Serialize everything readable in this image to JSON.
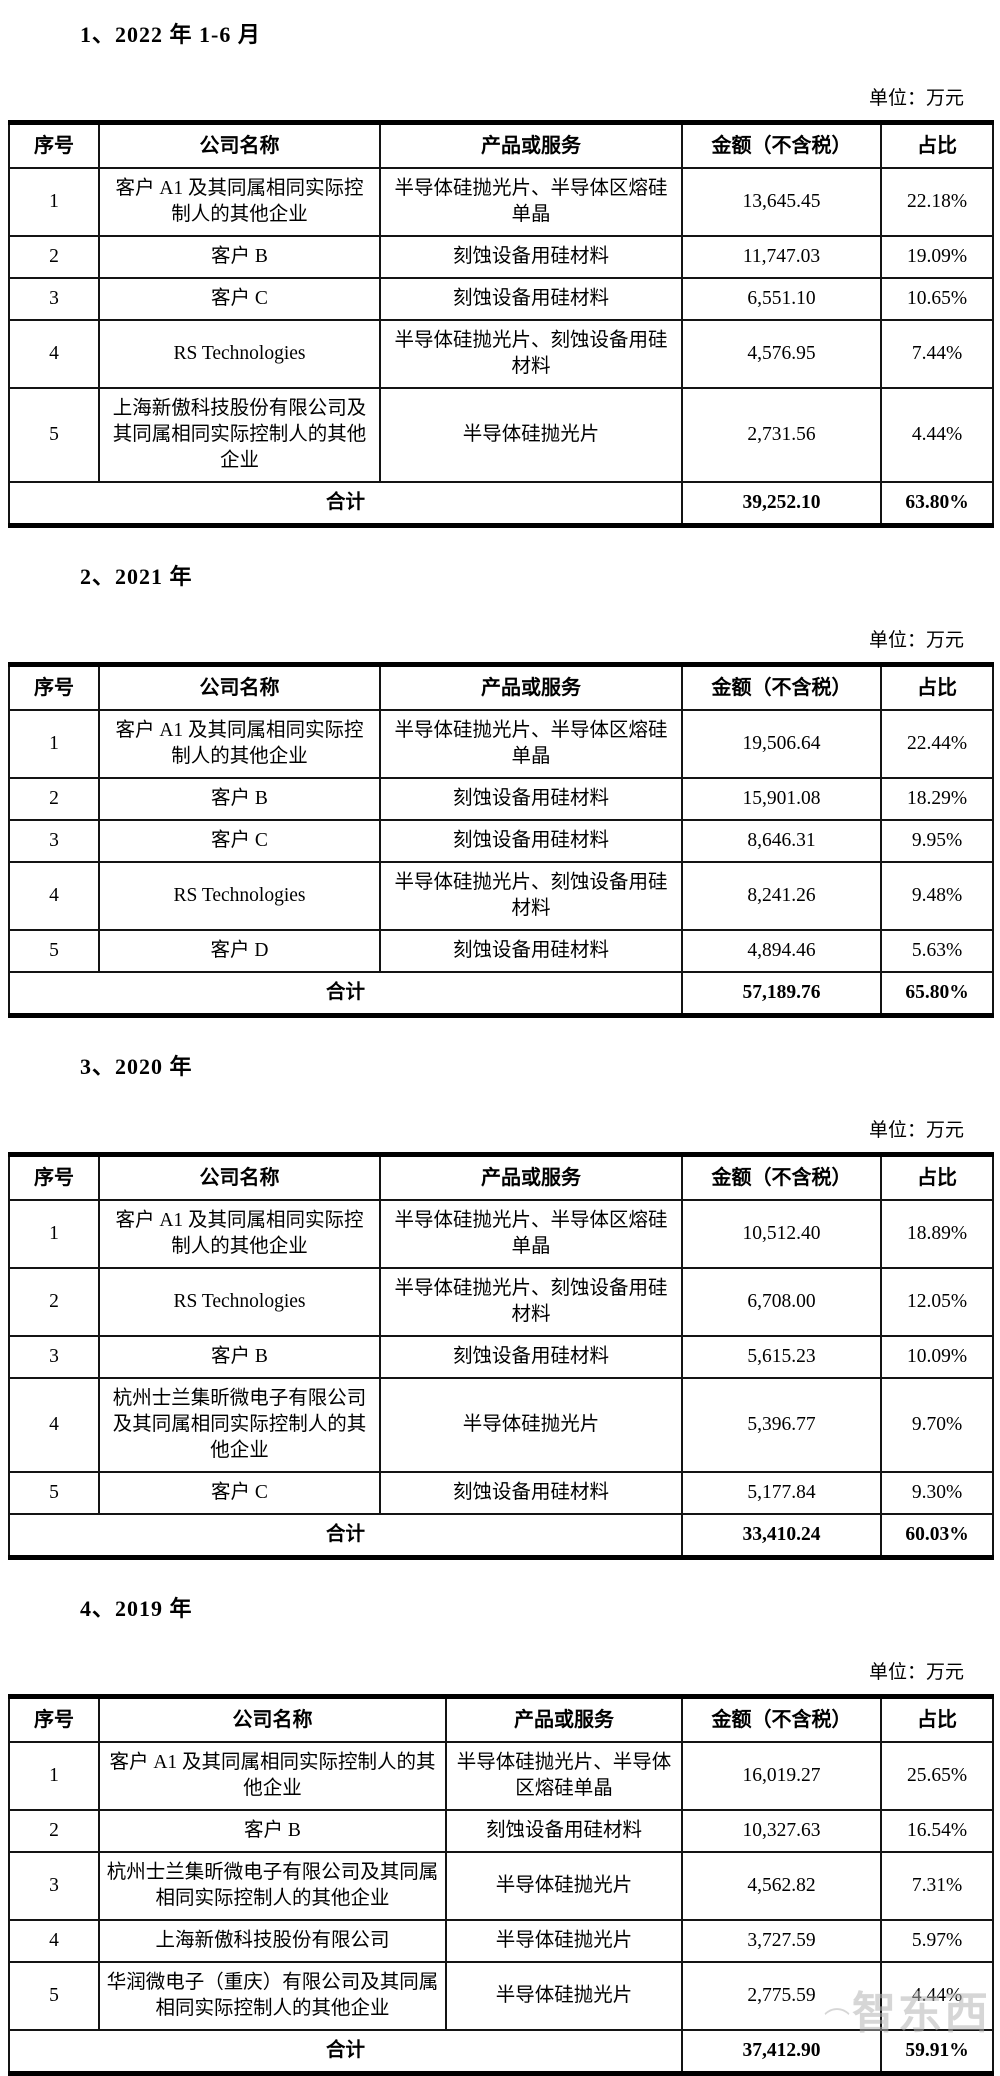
{
  "page": {
    "unit_label": "单位：万元",
    "total_label": "合计",
    "watermark_text": "智东西",
    "watermark_icon": "︵"
  },
  "columns": [
    "序号",
    "公司名称",
    "产品或服务",
    "金额（不含税）",
    "占比"
  ],
  "sections": [
    {
      "heading": "1、2022 年 1-6 月",
      "rows": [
        {
          "no": "1",
          "company": "客户 A1 及其同属相同实际控制人的其他企业",
          "product": "半导体硅抛光片、半导体区熔硅单晶",
          "amount": "13,645.45",
          "share": "22.18%"
        },
        {
          "no": "2",
          "company": "客户 B",
          "product": "刻蚀设备用硅材料",
          "amount": "11,747.03",
          "share": "19.09%"
        },
        {
          "no": "3",
          "company": "客户 C",
          "product": "刻蚀设备用硅材料",
          "amount": "6,551.10",
          "share": "10.65%"
        },
        {
          "no": "4",
          "company": "RS Technologies",
          "product": "半导体硅抛光片、刻蚀设备用硅材料",
          "amount": "4,576.95",
          "share": "7.44%"
        },
        {
          "no": "5",
          "company": "上海新傲科技股份有限公司及其同属相同实际控制人的其他企业",
          "product": "半导体硅抛光片",
          "amount": "2,731.56",
          "share": "4.44%"
        }
      ],
      "total": {
        "amount": "39,252.10",
        "share": "63.80%"
      }
    },
    {
      "heading": "2、2021 年",
      "rows": [
        {
          "no": "1",
          "company": "客户 A1 及其同属相同实际控制人的其他企业",
          "product": "半导体硅抛光片、半导体区熔硅单晶",
          "amount": "19,506.64",
          "share": "22.44%"
        },
        {
          "no": "2",
          "company": "客户 B",
          "product": "刻蚀设备用硅材料",
          "amount": "15,901.08",
          "share": "18.29%"
        },
        {
          "no": "3",
          "company": "客户 C",
          "product": "刻蚀设备用硅材料",
          "amount": "8,646.31",
          "share": "9.95%"
        },
        {
          "no": "4",
          "company": "RS Technologies",
          "product": "半导体硅抛光片、刻蚀设备用硅材料",
          "amount": "8,241.26",
          "share": "9.48%"
        },
        {
          "no": "5",
          "company": "客户 D",
          "product": "刻蚀设备用硅材料",
          "amount": "4,894.46",
          "share": "5.63%"
        }
      ],
      "total": {
        "amount": "57,189.76",
        "share": "65.80%"
      }
    },
    {
      "heading": "3、2020 年",
      "rows": [
        {
          "no": "1",
          "company": "客户 A1 及其同属相同实际控制人的其他企业",
          "product": "半导体硅抛光片、半导体区熔硅单晶",
          "amount": "10,512.40",
          "share": "18.89%"
        },
        {
          "no": "2",
          "company": "RS Technologies",
          "product": "半导体硅抛光片、刻蚀设备用硅材料",
          "amount": "6,708.00",
          "share": "12.05%"
        },
        {
          "no": "3",
          "company": "客户 B",
          "product": "刻蚀设备用硅材料",
          "amount": "5,615.23",
          "share": "10.09%"
        },
        {
          "no": "4",
          "company": "杭州士兰集昕微电子有限公司及其同属相同实际控制人的其他企业",
          "product": "半导体硅抛光片",
          "amount": "5,396.77",
          "share": "9.70%"
        },
        {
          "no": "5",
          "company": "客户 C",
          "product": "刻蚀设备用硅材料",
          "amount": "5,177.84",
          "share": "9.30%"
        }
      ],
      "total": {
        "amount": "33,410.24",
        "share": "60.03%"
      }
    },
    {
      "heading": "4、2019 年",
      "rows": [
        {
          "no": "1",
          "company": "客户 A1 及其同属相同实际控制人的其他企业",
          "product": "半导体硅抛光片、半导体区熔硅单晶",
          "amount": "16,019.27",
          "share": "25.65%"
        },
        {
          "no": "2",
          "company": "客户 B",
          "product": "刻蚀设备用硅材料",
          "amount": "10,327.63",
          "share": "16.54%"
        },
        {
          "no": "3",
          "company": "杭州士兰集昕微电子有限公司及其同属相同实际控制人的其他企业",
          "product": "半导体硅抛光片",
          "amount": "4,562.82",
          "share": "7.31%"
        },
        {
          "no": "4",
          "company": "上海新傲科技股份有限公司",
          "product": "半导体硅抛光片",
          "amount": "3,727.59",
          "share": "5.97%"
        },
        {
          "no": "5",
          "company": "华润微电子（重庆）有限公司及其同属相同实际控制人的其他企业",
          "product": "半导体硅抛光片",
          "amount": "2,775.59",
          "share": "4.44%"
        }
      ],
      "total": {
        "amount": "37,412.90",
        "share": "59.91%"
      }
    }
  ]
}
